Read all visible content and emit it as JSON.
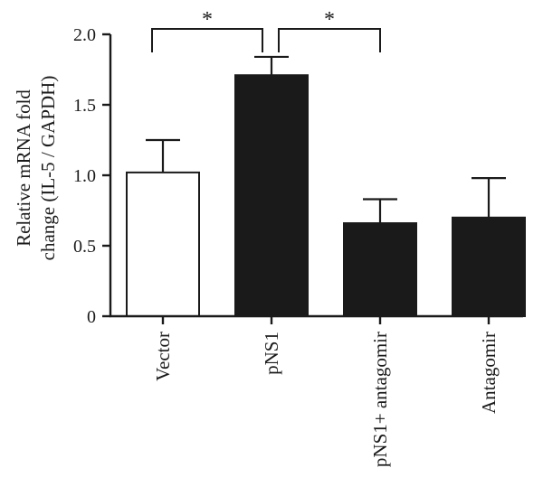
{
  "chart_data": {
    "type": "bar",
    "categories": [
      "Vector",
      "pNS1",
      "pNS1+ antagomir",
      "Antagomir"
    ],
    "values": [
      1.02,
      1.71,
      0.66,
      0.7
    ],
    "errors": [
      0.23,
      0.13,
      0.17,
      0.28
    ],
    "fills": [
      "#ffffff",
      "#1a1a1a",
      "#1a1a1a",
      "#1a1a1a"
    ],
    "ylabel_lines": [
      "Relative mRNA fold",
      "change (IL-5 / GAPDH)"
    ],
    "ylim": [
      0,
      2.0
    ],
    "yticks": [
      0,
      0.5,
      1.0,
      1.5,
      2.0
    ],
    "ytick_labels": [
      "0",
      "0.5",
      "1.0",
      "1.5",
      "2.0"
    ],
    "significance": [
      {
        "from": 0,
        "to": 1,
        "label": "*"
      },
      {
        "from": 1,
        "to": 2,
        "label": "*"
      }
    ],
    "grid": false,
    "legend": "none"
  }
}
